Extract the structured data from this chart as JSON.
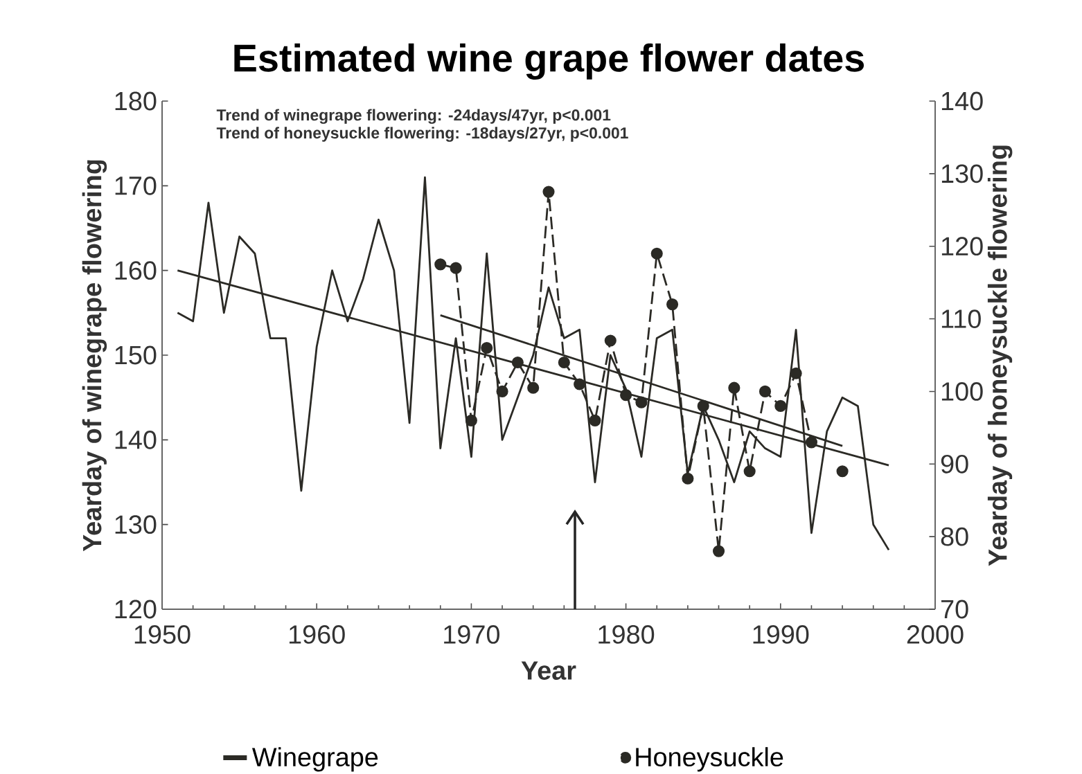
{
  "chart_data": {
    "type": "line",
    "title": "Estimated wine grape flower dates",
    "xlabel": "Year",
    "ylabel": "Yearday of winegrape flowering",
    "y2label": "Yearday of honeysuckle flowering",
    "annotations": [
      "Trend of winegrape flowering:      -24days/47yr, p<0.001",
      "Trend of honeysuckle flowering: -18days/27yr, p<0.001"
    ],
    "xlim": [
      1950,
      2000
    ],
    "xticks": [
      1950,
      1960,
      1970,
      1980,
      1990,
      2000
    ],
    "ylim": [
      120,
      180
    ],
    "yticks": [
      120,
      130,
      140,
      150,
      160,
      170,
      180
    ],
    "y2lim": [
      70,
      140
    ],
    "y2ticks": [
      70,
      80,
      90,
      100,
      110,
      120,
      130,
      140
    ],
    "legend": "bottom",
    "grid": false,
    "series": [
      {
        "name": "Winegrape",
        "color": "#2b2a25",
        "marker": "none",
        "line_style": "solid",
        "x": [
          1951,
          1952,
          1953,
          1954,
          1955,
          1956,
          1957,
          1958,
          1959,
          1960,
          1961,
          1962,
          1963,
          1964,
          1965,
          1966,
          1967,
          1968,
          1969,
          1970,
          1971,
          1972,
          1973,
          1974,
          1975,
          1976,
          1977,
          1978,
          1979,
          1980,
          1981,
          1982,
          1983,
          1984,
          1985,
          1986,
          1987,
          1988,
          1989,
          1990,
          1991,
          1992,
          1993,
          1994,
          1995,
          1996,
          1997
        ],
        "values": [
          155,
          154,
          168,
          155,
          164,
          162,
          152,
          152,
          134,
          151,
          160,
          154,
          159,
          166,
          160,
          142,
          171,
          139,
          152,
          138,
          162,
          140,
          145,
          150,
          158,
          152,
          153,
          135,
          150,
          146,
          138,
          152,
          153,
          136,
          144,
          140,
          135,
          141,
          139,
          138,
          153,
          129,
          141,
          145,
          144,
          130,
          127
        ]
      },
      {
        "name": "Honeysuckle",
        "color": "#2b2a25",
        "axis": "y2",
        "marker": "circle",
        "line_style": "dashed",
        "x": [
          1968,
          1969,
          1970,
          1971,
          1972,
          1973,
          1974,
          1975,
          1976,
          1977,
          1978,
          1979,
          1980,
          1981,
          1982,
          1983,
          1984,
          1985,
          1986,
          1987,
          1988,
          1989,
          1990,
          1991,
          1992,
          1993,
          1994
        ],
        "values": [
          117.5,
          117,
          96,
          106,
          100,
          104,
          100.5,
          127.5,
          104,
          101,
          96,
          107,
          99.5,
          98.5,
          119,
          112,
          88,
          98,
          78,
          100.5,
          89,
          100,
          98,
          102.5,
          93,
          null,
          89
        ]
      },
      {
        "color": "#2b2a25",
        "marker": "none",
        "line_style": "solid",
        "x": [
          1951,
          1997
        ],
        "values": [
          160,
          137
        ]
      },
      {
        "color": "#2b2a25",
        "axis": "y2",
        "marker": "none",
        "line_style": "solid",
        "x": [
          1968,
          1994
        ],
        "values": [
          110.5,
          92.5
        ]
      }
    ]
  }
}
